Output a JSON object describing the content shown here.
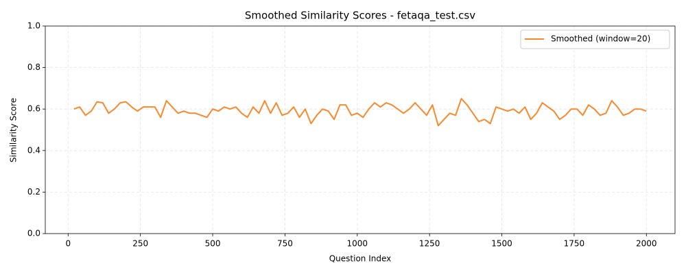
{
  "chart_data": {
    "type": "line",
    "title": "Smoothed Similarity Scores - fetaqa_test.csv",
    "x_label": "Question Index",
    "y_label": "Similarity Score",
    "x": [
      20,
      40,
      60,
      80,
      100,
      120,
      140,
      160,
      180,
      200,
      220,
      240,
      260,
      280,
      300,
      320,
      340,
      360,
      380,
      400,
      420,
      440,
      460,
      480,
      500,
      520,
      540,
      560,
      580,
      600,
      620,
      640,
      660,
      680,
      700,
      720,
      740,
      760,
      780,
      800,
      820,
      840,
      860,
      880,
      900,
      920,
      940,
      960,
      980,
      1000,
      1020,
      1040,
      1060,
      1080,
      1100,
      1120,
      1140,
      1160,
      1180,
      1200,
      1220,
      1240,
      1260,
      1280,
      1300,
      1320,
      1340,
      1360,
      1380,
      1400,
      1420,
      1440,
      1460,
      1480,
      1500,
      1520,
      1540,
      1560,
      1580,
      1600,
      1620,
      1640,
      1660,
      1680,
      1700,
      1720,
      1740,
      1760,
      1780,
      1800,
      1820,
      1840,
      1860,
      1880,
      1900,
      1920,
      1940,
      1960,
      1980,
      2000
    ],
    "series": [
      {
        "name": "Smoothed (window=20)",
        "color": "#f7892b",
        "values": [
          0.6,
          0.61,
          0.57,
          0.59,
          0.635,
          0.63,
          0.58,
          0.6,
          0.63,
          0.635,
          0.61,
          0.59,
          0.61,
          0.61,
          0.61,
          0.56,
          0.64,
          0.61,
          0.58,
          0.59,
          0.58,
          0.58,
          0.57,
          0.56,
          0.6,
          0.59,
          0.61,
          0.6,
          0.61,
          0.58,
          0.56,
          0.61,
          0.58,
          0.64,
          0.58,
          0.63,
          0.57,
          0.58,
          0.61,
          0.56,
          0.6,
          0.53,
          0.57,
          0.6,
          0.59,
          0.55,
          0.62,
          0.62,
          0.57,
          0.58,
          0.56,
          0.6,
          0.63,
          0.61,
          0.63,
          0.62,
          0.6,
          0.58,
          0.6,
          0.63,
          0.6,
          0.57,
          0.62,
          0.52,
          0.55,
          0.58,
          0.57,
          0.65,
          0.62,
          0.58,
          0.54,
          0.55,
          0.53,
          0.61,
          0.6,
          0.59,
          0.6,
          0.58,
          0.61,
          0.55,
          0.58,
          0.63,
          0.61,
          0.59,
          0.55,
          0.57,
          0.6,
          0.6,
          0.57,
          0.62,
          0.6,
          0.57,
          0.58,
          0.64,
          0.61,
          0.57,
          0.58,
          0.6,
          0.6,
          0.59
        ]
      }
    ],
    "xlim": [
      -79,
      2099
    ],
    "ylim": [
      0,
      1
    ],
    "xticks": [
      0,
      250,
      500,
      750,
      1000,
      1250,
      1500,
      1750,
      2000
    ],
    "yticks": [
      {
        "value": 0,
        "label": "0.0"
      },
      {
        "value": 0.2,
        "label": "0.2"
      },
      {
        "value": 0.4,
        "label": "0.4"
      },
      {
        "value": 0.6,
        "label": "0.6"
      },
      {
        "value": 0.8,
        "label": "0.8"
      },
      {
        "value": 1,
        "label": "1.0"
      }
    ],
    "grid": true,
    "legend": "upper right"
  }
}
